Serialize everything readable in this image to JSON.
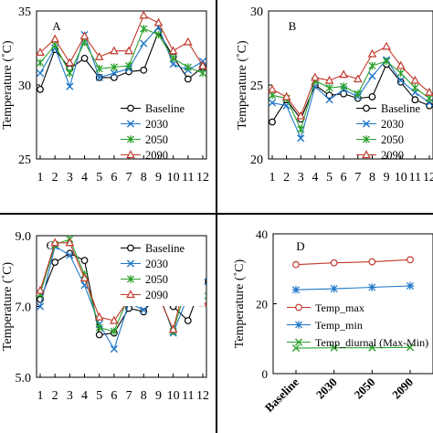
{
  "chart_data": [
    {
      "type": "line",
      "panel_label": "A",
      "ylabel": "Temperature (˚C)",
      "xlabel": "",
      "categories": [
        "1",
        "2",
        "3",
        "4",
        "5",
        "6",
        "7",
        "8",
        "9",
        "10",
        "11",
        "12"
      ],
      "ylim": [
        25,
        35
      ],
      "yticks": [
        "25",
        "30",
        "35"
      ],
      "legend_position": "bottom-right",
      "series": [
        {
          "name": "Baseline",
          "color": "#000000",
          "marker": "circle",
          "values": [
            29.7,
            32.4,
            31.1,
            31.8,
            30.5,
            30.5,
            30.9,
            31.0,
            33.6,
            31.9,
            30.4,
            31.2
          ]
        },
        {
          "name": "2030",
          "color": "#1f77c8",
          "marker": "x",
          "values": [
            30.8,
            32.5,
            29.9,
            33.4,
            30.5,
            30.8,
            31.1,
            32.8,
            33.9,
            31.4,
            31.0,
            31.6
          ]
        },
        {
          "name": "2050",
          "color": "#2ca02c",
          "marker": "star",
          "values": [
            31.5,
            32.7,
            30.8,
            32.9,
            31.1,
            31.2,
            31.3,
            33.8,
            33.4,
            31.8,
            31.2,
            30.8
          ]
        },
        {
          "name": "2090",
          "color": "#c0392b",
          "marker": "triangle",
          "values": [
            32.2,
            33.1,
            31.5,
            33.3,
            31.9,
            32.3,
            32.3,
            34.7,
            34.2,
            32.3,
            32.9,
            31.3
          ]
        }
      ]
    },
    {
      "type": "line",
      "panel_label": "B",
      "ylabel": "Temperature (˚C)",
      "xlabel": "",
      "categories": [
        "1",
        "2",
        "3",
        "4",
        "5",
        "6",
        "7",
        "8",
        "9",
        "10",
        "11",
        "12"
      ],
      "ylim": [
        20,
        30
      ],
      "yticks": [
        "20",
        "25",
        "30"
      ],
      "legend_position": "bottom-right",
      "series": [
        {
          "name": "Baseline",
          "color": "#000000",
          "marker": "circle",
          "values": [
            22.5,
            24.0,
            22.7,
            25.0,
            24.3,
            24.4,
            24.1,
            24.2,
            26.4,
            25.2,
            24.0,
            23.6
          ]
        },
        {
          "name": "2030",
          "color": "#1f77c8",
          "marker": "x",
          "values": [
            23.8,
            23.6,
            21.4,
            24.9,
            24.0,
            24.7,
            24.2,
            25.6,
            26.7,
            25.3,
            24.5,
            23.8
          ]
        },
        {
          "name": "2050",
          "color": "#2ca02c",
          "marker": "star",
          "values": [
            24.3,
            24.1,
            22.0,
            25.3,
            24.8,
            24.9,
            24.4,
            26.3,
            26.6,
            25.8,
            24.8,
            24.1
          ]
        },
        {
          "name": "2090",
          "color": "#c0392b",
          "marker": "triangle",
          "values": [
            24.7,
            24.2,
            22.9,
            25.5,
            25.3,
            25.7,
            25.4,
            27.1,
            27.6,
            26.3,
            25.3,
            24.5
          ]
        }
      ]
    },
    {
      "type": "line",
      "panel_label": "C",
      "ylabel": "Temperature (˚C)",
      "xlabel": "",
      "categories": [
        "1",
        "2",
        "3",
        "4",
        "5",
        "6",
        "7",
        "8",
        "9",
        "10",
        "11",
        "12"
      ],
      "ylim": [
        5.0,
        9.0
      ],
      "yticks": [
        "5.0",
        "7.0",
        "9.0"
      ],
      "legend_position": "top-right",
      "series": [
        {
          "name": "Baseline",
          "color": "#000000",
          "marker": "circle",
          "values": [
            7.2,
            8.25,
            8.5,
            8.3,
            6.2,
            6.25,
            6.95,
            6.85,
            7.4,
            7.0,
            6.6,
            7.7
          ]
        },
        {
          "name": "2030",
          "color": "#1f77c8",
          "marker": "x",
          "values": [
            7.0,
            8.7,
            8.45,
            7.6,
            6.5,
            5.8,
            7.1,
            6.9,
            7.4,
            6.25,
            7.3,
            7.7
          ]
        },
        {
          "name": "2050",
          "color": "#2ca02c",
          "marker": "star",
          "values": [
            7.35,
            8.75,
            8.9,
            7.9,
            6.4,
            6.3,
            7.3,
            7.55,
            7.35,
            6.3,
            7.7,
            7.3
          ]
        },
        {
          "name": "2090",
          "color": "#c0392b",
          "marker": "triangle",
          "values": [
            7.45,
            8.8,
            8.8,
            7.8,
            6.7,
            6.6,
            7.2,
            7.65,
            7.3,
            6.35,
            8.0,
            7.1
          ]
        }
      ]
    },
    {
      "type": "line",
      "panel_label": "D",
      "ylabel": "Temperature (˚C)",
      "xlabel": "",
      "categories": [
        "Baseline",
        "2030",
        "2050",
        "2090"
      ],
      "ylim": [
        0,
        40
      ],
      "yticks": [
        "0",
        "20",
        "40"
      ],
      "legend_position": "middle-right",
      "series": [
        {
          "name": "Temp_max",
          "color": "#c0392b",
          "marker": "circle-open",
          "values": [
            31.2,
            31.7,
            32.0,
            32.6
          ]
        },
        {
          "name": "Temp_min",
          "color": "#1f77c8",
          "marker": "asterisk",
          "values": [
            24.0,
            24.3,
            24.7,
            25.1
          ]
        },
        {
          "name": "Temp_diurnal  (Max-Min)",
          "color": "#2ca02c",
          "marker": "x",
          "values": [
            7.3,
            7.4,
            7.4,
            7.5
          ]
        }
      ]
    }
  ]
}
